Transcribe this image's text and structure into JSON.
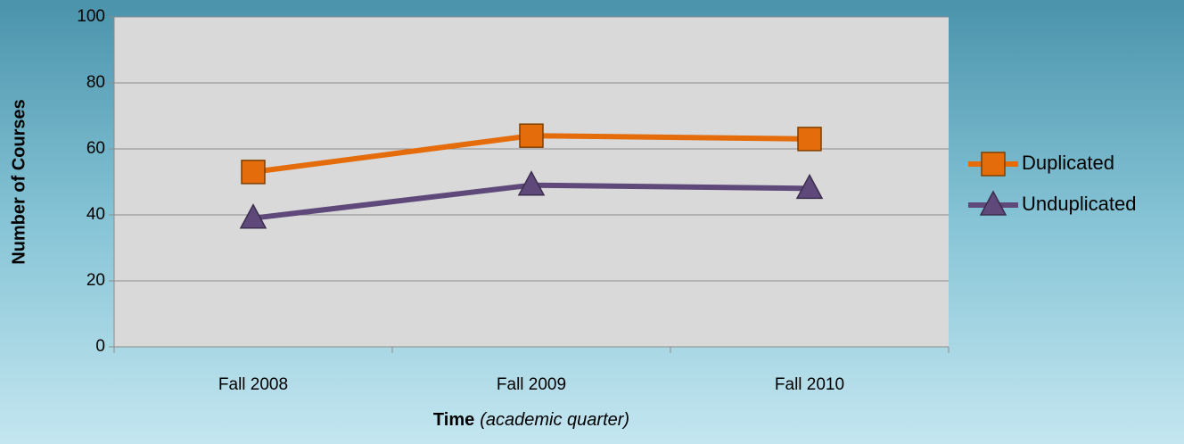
{
  "chart_data": {
    "type": "line",
    "categories": [
      "Fall 2008",
      "Fall 2009",
      "Fall 2010"
    ],
    "series": [
      {
        "name": "Duplicated",
        "color": "#e46c0a",
        "marker": "square",
        "values": [
          53,
          64,
          63
        ]
      },
      {
        "name": "Unduplicated",
        "color": "#5f497a",
        "marker": "triangle",
        "values": [
          39,
          49,
          48
        ]
      }
    ],
    "ylabel": "Number of Courses",
    "xlabel": "Time",
    "xlabel_note": "(academic quarter)",
    "ylim": [
      0,
      100
    ],
    "yticks": [
      0,
      20,
      40,
      60,
      80,
      100
    ],
    "grid": true,
    "legend": "right"
  }
}
